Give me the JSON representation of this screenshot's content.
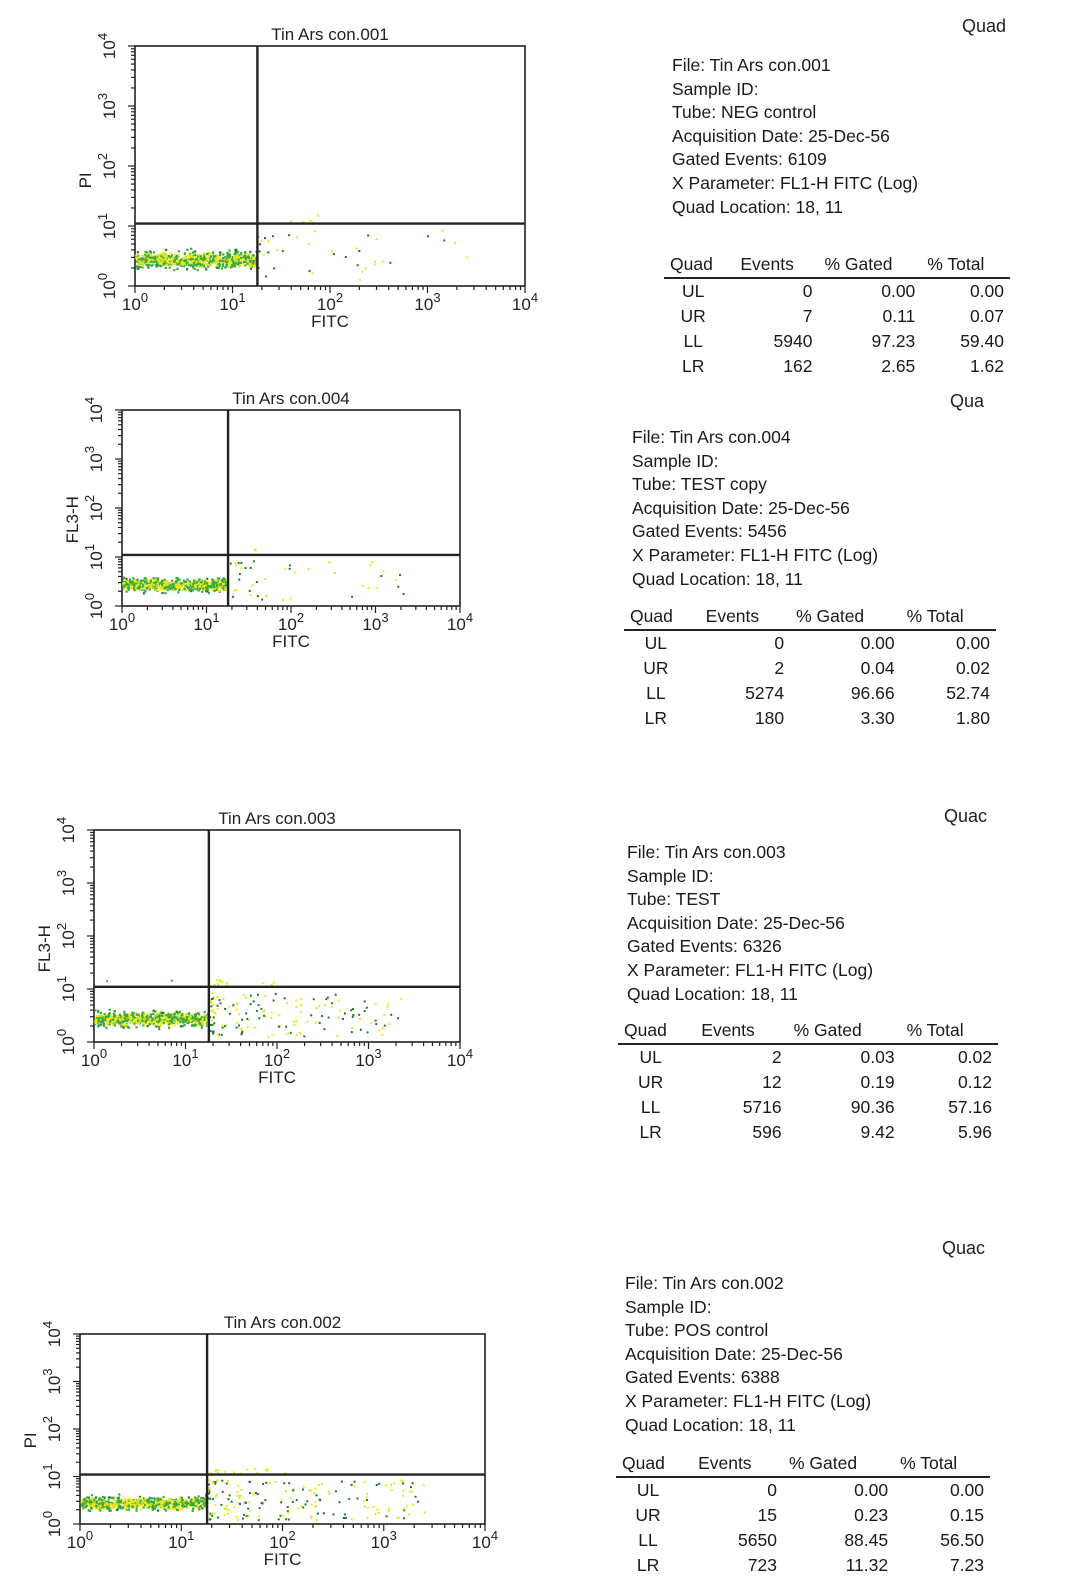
{
  "panels": [
    {
      "id": "p1",
      "title": "Tin Ars con.001",
      "ylabel": "PI",
      "xlabel": "FITC",
      "quad_header": "Quad",
      "info": {
        "file": "File: Tin Ars con.001",
        "sample": "Sample ID:",
        "tube": "Tube: NEG  control",
        "date": "Acquisition Date: 25-Dec-56",
        "gated": "Gated Events: 6109",
        "xparam": "X Parameter: FL1-H FITC (Log)",
        "quadloc": "Quad Location: 18, 11"
      },
      "table": {
        "headers": [
          "Quad",
          "Events",
          "% Gated",
          "% Total"
        ],
        "rows": [
          [
            "UL",
            "0",
            "0.00",
            "0.00"
          ],
          [
            "UR",
            "7",
            "0.11",
            "0.07"
          ],
          [
            "LL",
            "5940",
            "97.23",
            "59.40"
          ],
          [
            "LR",
            "162",
            "2.65",
            "1.62"
          ]
        ]
      }
    },
    {
      "id": "p2",
      "title": "Tin Ars con.004",
      "ylabel": "FL3-H",
      "xlabel": "FITC",
      "quad_header": "Qua",
      "info": {
        "file": "File: Tin Ars con.004",
        "sample": "Sample ID:",
        "tube": "Tube: TEST copy",
        "date": "Acquisition Date: 25-Dec-56",
        "gated": "Gated Events: 5456",
        "xparam": "X Parameter: FL1-H FITC (Log)",
        "quadloc": "Quad Location: 18, 11"
      },
      "table": {
        "headers": [
          "Quad",
          "Events",
          "% Gated",
          "% Total"
        ],
        "rows": [
          [
            "UL",
            "0",
            "0.00",
            "0.00"
          ],
          [
            "UR",
            "2",
            "0.04",
            "0.02"
          ],
          [
            "LL",
            "5274",
            "96.66",
            "52.74"
          ],
          [
            "LR",
            "180",
            "3.30",
            "1.80"
          ]
        ]
      }
    },
    {
      "id": "p3",
      "title": "Tin Ars con.003",
      "ylabel": "FL3-H",
      "xlabel": "FITC",
      "quad_header": "Quac",
      "info": {
        "file": "File: Tin Ars con.003",
        "sample": "Sample ID:",
        "tube": "Tube: TEST",
        "date": "Acquisition Date: 25-Dec-56",
        "gated": "Gated Events: 6326",
        "xparam": "X Parameter: FL1-H FITC (Log)",
        "quadloc": "Quad Location: 18, 11"
      },
      "table": {
        "headers": [
          "Quad",
          "Events",
          "% Gated",
          "% Total"
        ],
        "rows": [
          [
            "UL",
            "2",
            "0.03",
            "0.02"
          ],
          [
            "UR",
            "12",
            "0.19",
            "0.12"
          ],
          [
            "LL",
            "5716",
            "90.36",
            "57.16"
          ],
          [
            "LR",
            "596",
            "9.42",
            "5.96"
          ]
        ]
      }
    },
    {
      "id": "p4",
      "title": "Tin Ars con.002",
      "ylabel": "PI",
      "xlabel": "FITC",
      "quad_header": "Quac",
      "info": {
        "file": "File: Tin Ars con.002",
        "sample": "Sample ID:",
        "tube": "Tube: POS  control",
        "date": "Acquisition Date: 25-Dec-56",
        "gated": "Gated Events: 6388",
        "xparam": "X Parameter: FL1-H FITC (Log)",
        "quadloc": "Quad Location: 18, 11"
      },
      "table": {
        "headers": [
          "Quad",
          "Events",
          "% Gated",
          "% Total"
        ],
        "rows": [
          [
            "UL",
            "0",
            "0.00",
            "0.00"
          ],
          [
            "UR",
            "15",
            "0.23",
            "0.15"
          ],
          [
            "LL",
            "5650",
            "88.45",
            "56.50"
          ],
          [
            "LR",
            "723",
            "11.32",
            "7.23"
          ]
        ]
      }
    }
  ],
  "chart_data": [
    {
      "type": "scatter",
      "title": "Tin Ars con.001",
      "xlabel": "FITC",
      "ylabel": "PI",
      "xscale": "log",
      "yscale": "log",
      "xlim": [
        1,
        10000
      ],
      "ylim": [
        1,
        10000
      ],
      "x_ticks": [
        "10^0",
        "10^1",
        "10^2",
        "10^3",
        "10^4"
      ],
      "y_ticks": [
        "10^0",
        "10^1",
        "10^2",
        "10^3",
        "10^4"
      ],
      "quad_location": [
        18,
        11
      ],
      "quadrant_events": {
        "UL": 0,
        "UR": 7,
        "LL": 5940,
        "LR": 162
      },
      "colors": {
        "dense": "#e8e81a",
        "medium": "#3aa843",
        "sparse": "#1a7a2a"
      }
    },
    {
      "type": "scatter",
      "title": "Tin Ars con.004",
      "xlabel": "FITC",
      "ylabel": "FL3-H",
      "xscale": "log",
      "yscale": "log",
      "xlim": [
        1,
        10000
      ],
      "ylim": [
        1,
        10000
      ],
      "x_ticks": [
        "10^0",
        "10^1",
        "10^2",
        "10^3",
        "10^4"
      ],
      "y_ticks": [
        "10^0",
        "10^1",
        "10^2",
        "10^3",
        "10^4"
      ],
      "quad_location": [
        18,
        11
      ],
      "quadrant_events": {
        "UL": 0,
        "UR": 2,
        "LL": 5274,
        "LR": 180
      },
      "colors": {
        "dense": "#e8e81a",
        "medium": "#3aa843",
        "sparse": "#1a7a2a"
      }
    },
    {
      "type": "scatter",
      "title": "Tin Ars con.003",
      "xlabel": "FITC",
      "ylabel": "FL3-H",
      "xscale": "log",
      "yscale": "log",
      "xlim": [
        1,
        10000
      ],
      "ylim": [
        1,
        10000
      ],
      "x_ticks": [
        "10^0",
        "10^1",
        "10^2",
        "10^3",
        "10^4"
      ],
      "y_ticks": [
        "10^0",
        "10^1",
        "10^2",
        "10^3",
        "10^4"
      ],
      "quad_location": [
        18,
        11
      ],
      "quadrant_events": {
        "UL": 2,
        "UR": 12,
        "LL": 5716,
        "LR": 596
      },
      "colors": {
        "dense": "#e8e81a",
        "medium": "#3aa843",
        "sparse": "#1a7a2a"
      }
    },
    {
      "type": "scatter",
      "title": "Tin Ars con.002",
      "xlabel": "FITC",
      "ylabel": "PI",
      "xscale": "log",
      "yscale": "log",
      "xlim": [
        1,
        10000
      ],
      "ylim": [
        1,
        10000
      ],
      "x_ticks": [
        "10^0",
        "10^1",
        "10^2",
        "10^3",
        "10^4"
      ],
      "y_ticks": [
        "10^0",
        "10^1",
        "10^2",
        "10^3",
        "10^4"
      ],
      "quad_location": [
        18,
        11
      ],
      "quadrant_events": {
        "UL": 0,
        "UR": 15,
        "LL": 5650,
        "LR": 723
      },
      "colors": {
        "dense": "#e8e81a",
        "medium": "#3aa843",
        "sparse": "#1a7a2a"
      }
    }
  ]
}
